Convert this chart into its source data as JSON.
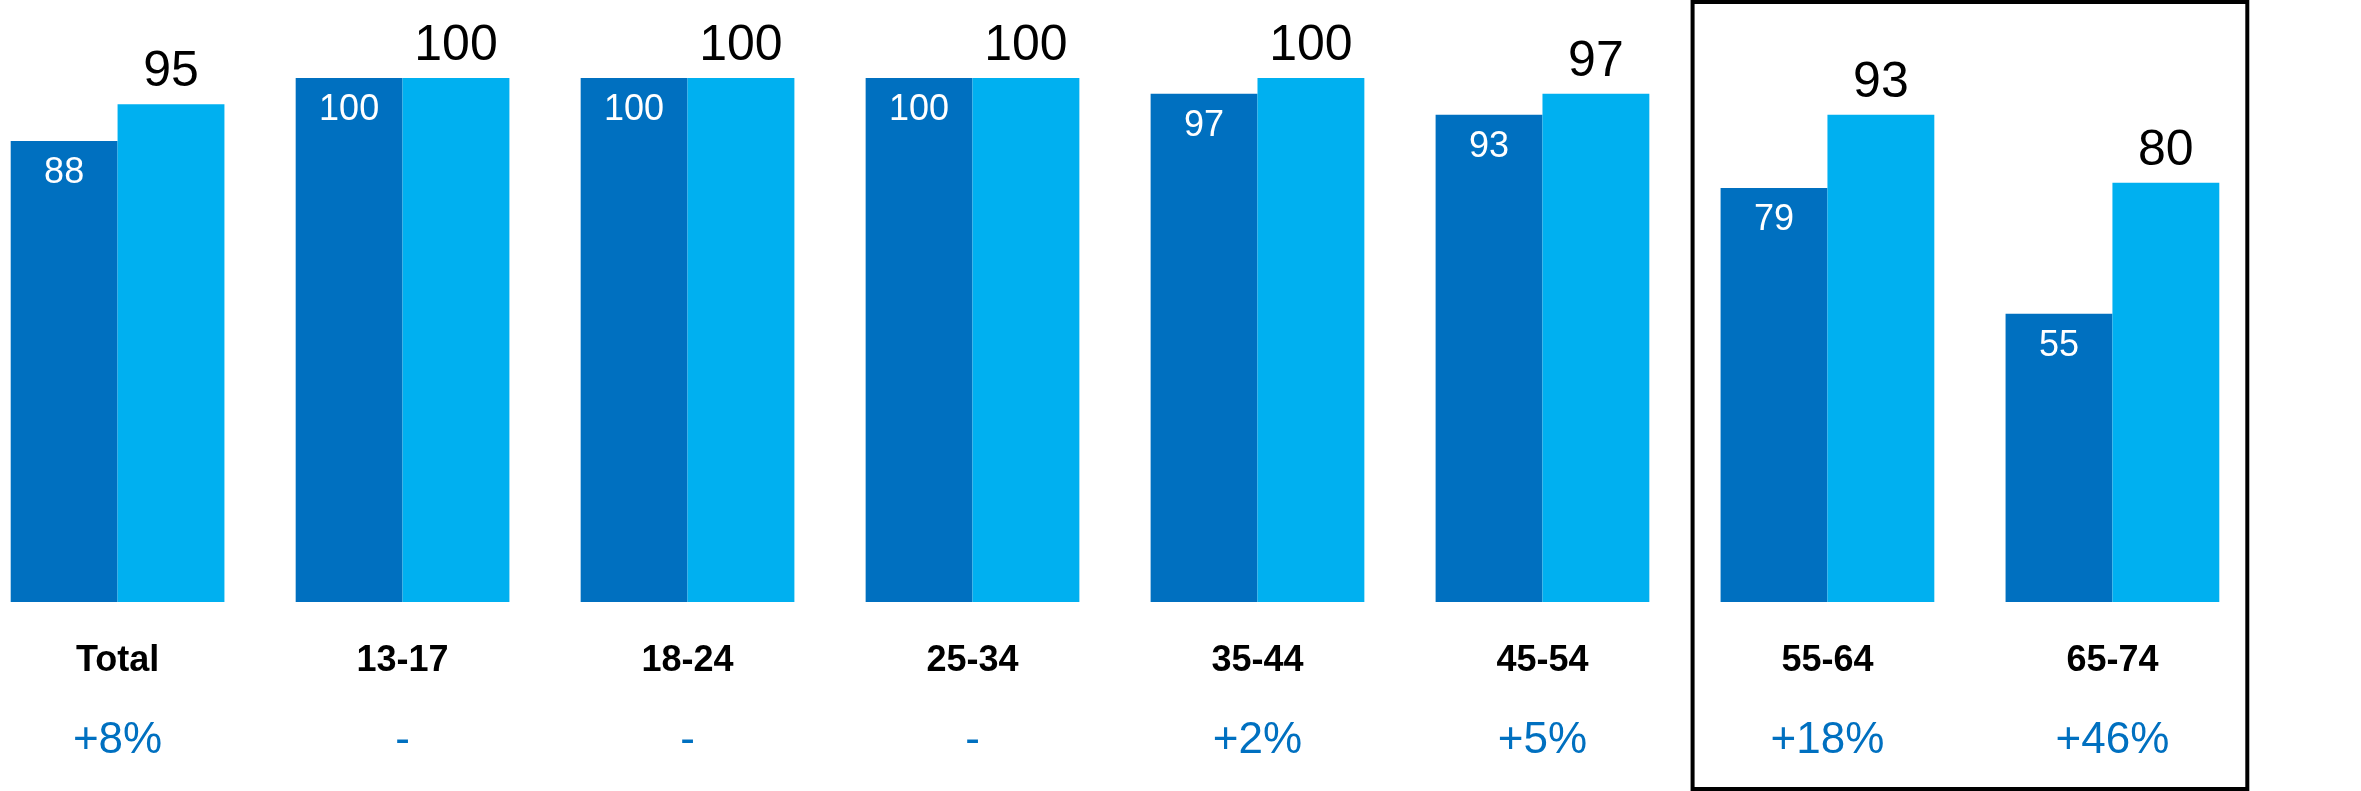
{
  "chart_data": {
    "type": "bar",
    "categories": [
      "Total",
      "13-17",
      "18-24",
      "25-34",
      "35-44",
      "45-54",
      "55-64",
      "65-74"
    ],
    "series": [
      {
        "color": "#0070c0",
        "values": [
          88,
          100,
          100,
          100,
          97,
          93,
          79,
          55
        ]
      },
      {
        "color": "#00b0f0",
        "values": [
          95,
          100,
          100,
          100,
          100,
          97,
          93,
          80
        ]
      }
    ],
    "data_labels": true,
    "tick_labels": "x",
    "grid": false,
    "legend": false,
    "annotations": [
      "+8%",
      "-",
      "-",
      "-",
      "+2%",
      "+5%",
      "+18%",
      "+46%"
    ]
  }
}
